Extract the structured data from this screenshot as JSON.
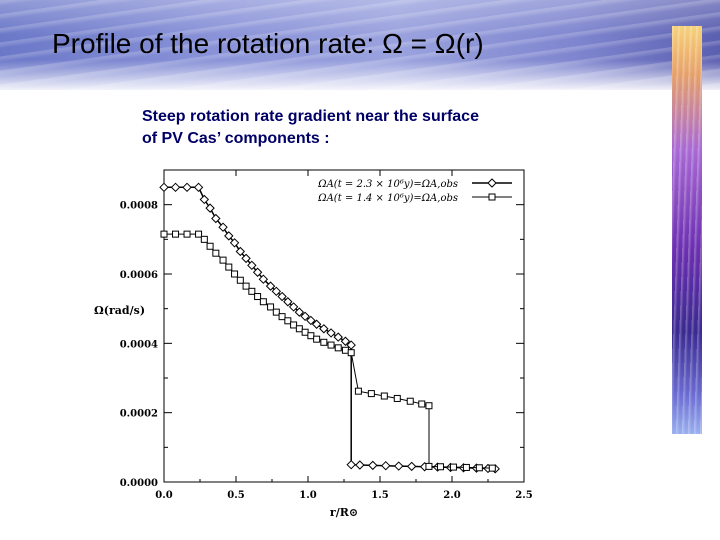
{
  "slide": {
    "title": "Profile of the rotation rate: Ω = Ω(r)",
    "subtitle_line1": "Steep rotation rate gradient near the surface",
    "subtitle_line2": "of PV Cas’ components :"
  },
  "colors": {
    "subtitle": "#000066",
    "banner": "#8a93d8"
  },
  "chart_data": {
    "type": "line",
    "xlabel": "r/R⊙",
    "ylabel": "Ω(rad/s)",
    "xlim": [
      0.0,
      2.5
    ],
    "ylim": [
      0.0,
      0.0009
    ],
    "xticks": [
      "0.0",
      "0.5",
      "1.0",
      "1.5",
      "2.0",
      "2.5"
    ],
    "yticks": [
      "0.0000",
      "0.0002",
      "0.0004",
      "0.0006",
      "0.0008"
    ],
    "legend_position": "top-right",
    "series": [
      {
        "name": "ΩA(t = 2.3 × 10⁶y)=ΩA,obs",
        "marker": "diamond",
        "x": [
          0.0,
          0.08,
          0.16,
          0.24,
          0.28,
          0.32,
          0.36,
          0.41,
          0.45,
          0.49,
          0.53,
          0.57,
          0.61,
          0.65,
          0.69,
          0.74,
          0.78,
          0.82,
          0.86,
          0.9,
          0.94,
          0.98,
          1.02,
          1.06,
          1.11,
          1.16,
          1.21,
          1.26,
          1.3,
          1.3,
          1.36,
          1.45,
          1.54,
          1.63,
          1.72,
          1.81,
          1.9,
          1.99,
          2.08,
          2.17,
          2.25,
          2.3
        ],
        "y": [
          0.00085,
          0.00085,
          0.00085,
          0.00085,
          0.000815,
          0.00079,
          0.00076,
          0.000735,
          0.00071,
          0.00069,
          0.000665,
          0.000645,
          0.000625,
          0.000605,
          0.000585,
          0.000565,
          0.00055,
          0.000535,
          0.00052,
          0.000505,
          0.00049,
          0.000478,
          0.000466,
          0.000455,
          0.000442,
          0.00043,
          0.000418,
          0.000406,
          0.000395,
          5e-05,
          4.9e-05,
          4.8e-05,
          4.7e-05,
          4.6e-05,
          4.5e-05,
          4.4e-05,
          4.3e-05,
          4.2e-05,
          4.1e-05,
          4e-05,
          3.9e-05,
          3.8e-05
        ]
      },
      {
        "name": "ΩA(t = 1.4 × 10⁶y)=ΩA,obs",
        "marker": "square",
        "x": [
          0.0,
          0.08,
          0.16,
          0.24,
          0.28,
          0.32,
          0.36,
          0.41,
          0.45,
          0.49,
          0.53,
          0.57,
          0.61,
          0.65,
          0.69,
          0.74,
          0.78,
          0.82,
          0.86,
          0.9,
          0.94,
          0.98,
          1.02,
          1.06,
          1.11,
          1.16,
          1.21,
          1.26,
          1.3,
          1.35,
          1.44,
          1.53,
          1.62,
          1.71,
          1.79,
          1.84,
          1.84,
          1.92,
          2.01,
          2.1,
          2.19,
          2.28
        ],
        "y": [
          0.000715,
          0.000715,
          0.000715,
          0.000715,
          0.0007,
          0.00068,
          0.00066,
          0.00064,
          0.00062,
          0.0006,
          0.000582,
          0.000565,
          0.00055,
          0.000535,
          0.00052,
          0.000505,
          0.00049,
          0.000477,
          0.000465,
          0.000453,
          0.000442,
          0.000432,
          0.000422,
          0.000412,
          0.000403,
          0.000395,
          0.000387,
          0.00038,
          0.000373,
          0.000262,
          0.000255,
          0.000248,
          0.000241,
          0.000233,
          0.000225,
          0.00022,
          4.5e-05,
          4.4e-05,
          4.3e-05,
          4.2e-05,
          4.1e-05,
          4e-05
        ]
      }
    ]
  }
}
